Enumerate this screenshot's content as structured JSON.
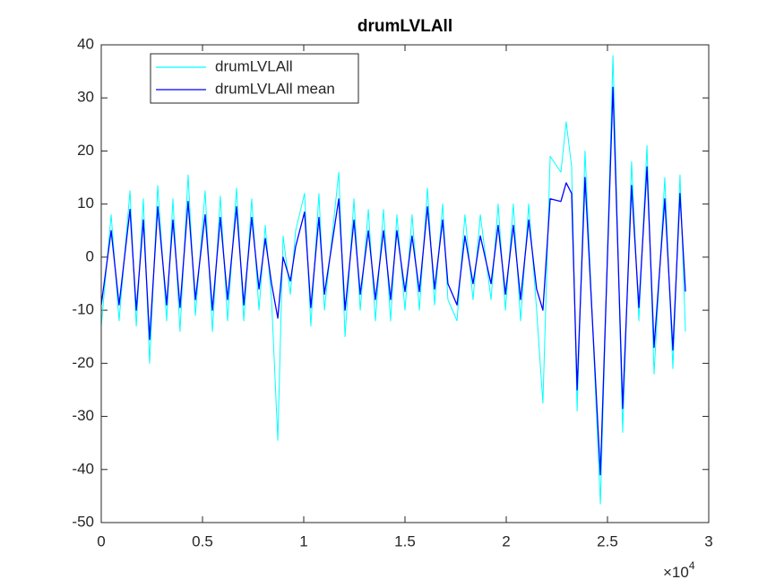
{
  "chart_data": {
    "type": "line",
    "title": "drumLVLAll",
    "x_scale_label": {
      "base": "×10",
      "exponent": "4"
    },
    "x": [
      0,
      0.049,
      0.088,
      0.142,
      0.173,
      0.208,
      0.239,
      0.279,
      0.323,
      0.354,
      0.389,
      0.429,
      0.465,
      0.513,
      0.549,
      0.588,
      0.624,
      0.668,
      0.704,
      0.743,
      0.779,
      0.81,
      0.841,
      0.872,
      0.898,
      0.934,
      0.96,
      1.004,
      1.035,
      1.075,
      1.102,
      1.173,
      1.204,
      1.248,
      1.279,
      1.319,
      1.354,
      1.394,
      1.429,
      1.46,
      1.5,
      1.535,
      1.571,
      1.611,
      1.646,
      1.686,
      1.712,
      1.757,
      1.796,
      1.836,
      1.872,
      1.925,
      1.96,
      1.996,
      2.035,
      2.071,
      2.111,
      2.15,
      2.181,
      2.217,
      2.27,
      2.296,
      2.323,
      2.35,
      2.389,
      2.465,
      2.527,
      2.575,
      2.619,
      2.655,
      2.695,
      2.73,
      2.783,
      2.823,
      2.858,
      2.885
    ],
    "series": [
      {
        "name": "drumLVLAll",
        "color": "#00ffff",
        "values": [
          -13,
          8,
          -12,
          12.5,
          -13,
          11,
          -20,
          13.5,
          -12,
          11,
          -14,
          15.5,
          -11,
          12.5,
          -14,
          11.5,
          -12,
          13,
          -12,
          11,
          -10,
          6,
          -8,
          -34.5,
          4,
          -7,
          5,
          12,
          -13,
          12,
          -10,
          16,
          -15,
          11,
          -10,
          9,
          -12,
          9,
          -12,
          8,
          -10,
          8,
          -10,
          13,
          -9,
          10,
          -8,
          -12,
          8,
          -8,
          8,
          -8,
          10,
          -10,
          10,
          -12,
          10,
          -10,
          -27.5,
          19,
          16,
          25.5,
          17,
          -29,
          20,
          -46.5,
          38,
          -33,
          18,
          -12,
          21,
          -22,
          15,
          -21,
          15.5,
          -14
        ]
      },
      {
        "name": "drumLVLAll mean",
        "color": "#0000ff",
        "values": [
          -9,
          5,
          -9,
          9,
          -10,
          7,
          -15.5,
          9.5,
          -9,
          7,
          -9.5,
          10.5,
          -8,
          8,
          -10,
          7.5,
          -8,
          9.5,
          -9,
          7.5,
          -6,
          3.5,
          -5,
          -11.5,
          0,
          -4.5,
          2,
          8.5,
          -9.5,
          7.5,
          -7,
          11,
          -10,
          7,
          -7,
          5,
          -8,
          5,
          -8,
          5,
          -6.5,
          4,
          -6.5,
          9.5,
          -6,
          7,
          -5,
          -9,
          4,
          -5,
          4,
          -5,
          6,
          -7,
          6,
          -8,
          7,
          -6,
          -10,
          11,
          10.5,
          14,
          12,
          -25,
          15,
          -41,
          32,
          -28.5,
          13.5,
          -9.5,
          17,
          -17,
          11,
          -17.5,
          12,
          -6.5
        ]
      }
    ],
    "xlim": [
      0,
      3
    ],
    "xticks": [
      0,
      0.5,
      1,
      1.5,
      2,
      2.5,
      3
    ],
    "ylim": [
      -50,
      40
    ],
    "yticks": [
      -50,
      -40,
      -30,
      -20,
      -10,
      0,
      10,
      20,
      30,
      40
    ],
    "grid": false,
    "legend": "northwest"
  }
}
